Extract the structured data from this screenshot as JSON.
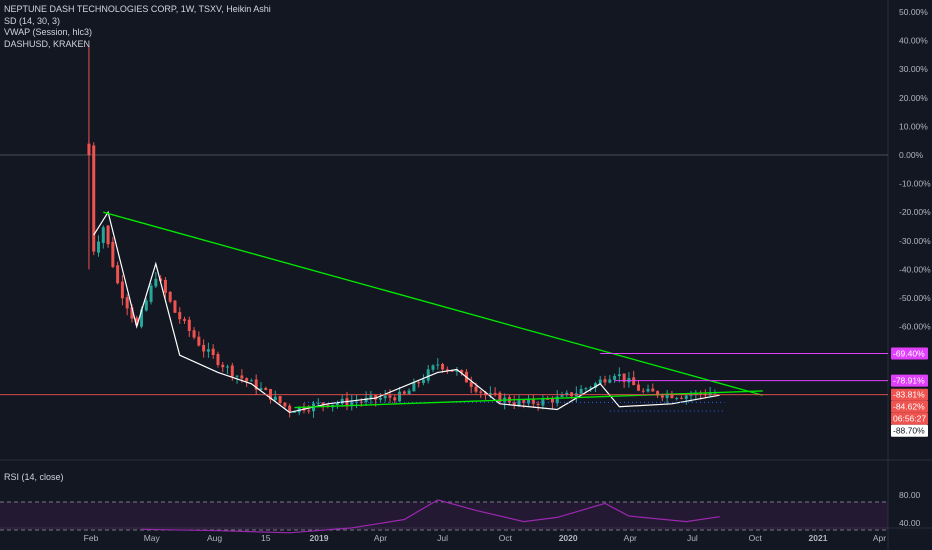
{
  "legend": {
    "title": "NEPTUNE DASH TECHNOLOGIES CORP, 1W, TSXV, Heikin Ashi",
    "sd": "SD (14, 30, 3)",
    "vwap": "VWAP (Session, hlc3)",
    "compare": "DASHUSD, KRAKEN"
  },
  "rsi_label": "RSI (14, close)",
  "colors": {
    "background": "#131722",
    "up": "#26a69a",
    "down": "#ef5350",
    "compare_line": "#ffffff",
    "trendline": "#00e600",
    "magenta": "#e040fb",
    "rsi": "#9c27b0",
    "price_line": "#ef5350"
  },
  "chart_data": [
    {
      "type": "candlestick",
      "title": "NEPTUNE DASH TECHNOLOGIES CORP, 1W, TSXV, Heikin Ashi",
      "y_unit": "percent",
      "ylim": [
        -91,
        53
      ],
      "y_ticks": [
        "50.00%",
        "40.00%",
        "30.00%",
        "20.00%",
        "10.00%",
        "0.00%",
        "-10.00%",
        "-20.00%",
        "-30.00%",
        "-40.00%",
        "-50.00%",
        "-60.00%"
      ],
      "x_ticks": [
        "Feb",
        "May",
        "Aug",
        "15",
        "2019",
        "Apr",
        "Jul",
        "Oct",
        "2020",
        "Apr",
        "Jul",
        "Oct",
        "2021",
        "Apr"
      ],
      "x_tick_dates": [
        "2018-02",
        "2018-05",
        "2018-08",
        "2018-10-15",
        "2019-01",
        "2019-04",
        "2019-07",
        "2019-10",
        "2020-01",
        "2020-04",
        "2020-07",
        "2020-10",
        "2021-01",
        "2021-04"
      ],
      "price_closes_approx": [
        {
          "date": "2018-01-29",
          "value": 0
        },
        {
          "date": "2018-02-05",
          "value": -33
        },
        {
          "date": "2018-02-19",
          "value": -25
        },
        {
          "date": "2018-03-12",
          "value": -45
        },
        {
          "date": "2018-04-09",
          "value": -60
        },
        {
          "date": "2018-05-07",
          "value": -42
        },
        {
          "date": "2018-06-04",
          "value": -55
        },
        {
          "date": "2018-07-16",
          "value": -68
        },
        {
          "date": "2018-08-27",
          "value": -76
        },
        {
          "date": "2018-10-08",
          "value": -82
        },
        {
          "date": "2018-11-19",
          "value": -89
        },
        {
          "date": "2019-01-07",
          "value": -87
        },
        {
          "date": "2019-03-04",
          "value": -86
        },
        {
          "date": "2019-05-06",
          "value": -84
        },
        {
          "date": "2019-06-24",
          "value": -73
        },
        {
          "date": "2019-07-22",
          "value": -76
        },
        {
          "date": "2019-09-02",
          "value": -84
        },
        {
          "date": "2019-10-28",
          "value": -87
        },
        {
          "date": "2019-12-23",
          "value": -85
        },
        {
          "date": "2020-02-10",
          "value": -80
        },
        {
          "date": "2020-03-09",
          "value": -76
        },
        {
          "date": "2020-04-20",
          "value": -83
        },
        {
          "date": "2020-06-15",
          "value": -84
        },
        {
          "date": "2020-08-03",
          "value": -83
        }
      ],
      "compare_series": {
        "name": "DASHUSD, KRAKEN",
        "values_approx": [
          {
            "date": "2018-02-05",
            "value": -28
          },
          {
            "date": "2018-02-26",
            "value": -20
          },
          {
            "date": "2018-04-09",
            "value": -60
          },
          {
            "date": "2018-05-07",
            "value": -38
          },
          {
            "date": "2018-06-11",
            "value": -70
          },
          {
            "date": "2018-08-06",
            "value": -76
          },
          {
            "date": "2018-09-24",
            "value": -80
          },
          {
            "date": "2018-11-19",
            "value": -90
          },
          {
            "date": "2019-01-14",
            "value": -87
          },
          {
            "date": "2019-03-25",
            "value": -85
          },
          {
            "date": "2019-06-24",
            "value": -76
          },
          {
            "date": "2019-07-22",
            "value": -75
          },
          {
            "date": "2019-09-23",
            "value": -87
          },
          {
            "date": "2019-12-16",
            "value": -89
          },
          {
            "date": "2020-02-17",
            "value": -80
          },
          {
            "date": "2020-03-16",
            "value": -88
          },
          {
            "date": "2020-06-01",
            "value": -87
          },
          {
            "date": "2020-08-10",
            "value": -84
          }
        ]
      },
      "trendlines": [
        {
          "from": {
            "date": "2018-02-19",
            "value": -20
          },
          "to": {
            "date": "2020-10-12",
            "value": -84
          }
        },
        {
          "from": {
            "date": "2018-11-26",
            "value": -88.3
          },
          "to": {
            "date": "2020-10-12",
            "value": -82.5
          }
        }
      ],
      "price_labels": [
        {
          "text": "-69.40%",
          "value": -69.4,
          "color": "#e040fb"
        },
        {
          "text": "-78.91%",
          "value": -78.91,
          "color": "#e040fb"
        },
        {
          "text": "-83.81%",
          "value": -83.81,
          "color": "#ef5350"
        },
        {
          "text": "-84.62%",
          "value": -84.62,
          "color": "#ef5350"
        },
        {
          "text": "06:56:27",
          "value": -87.0,
          "color": "#ef5350"
        },
        {
          "text": "-88.70%",
          "value": -88.7,
          "color": "#ffffff"
        }
      ]
    },
    {
      "type": "line",
      "title": "RSI (14, close)",
      "ylim": [
        25,
        90
      ],
      "y_ticks": [
        "80.00",
        "40.00"
      ],
      "bands": [
        70,
        30
      ],
      "values_approx": [
        {
          "date": "2018-04-16",
          "value": 31
        },
        {
          "date": "2018-08-06",
          "value": 29
        },
        {
          "date": "2018-11-19",
          "value": 26
        },
        {
          "date": "2019-02-18",
          "value": 33
        },
        {
          "date": "2019-05-06",
          "value": 45
        },
        {
          "date": "2019-06-24",
          "value": 73
        },
        {
          "date": "2019-08-19",
          "value": 58
        },
        {
          "date": "2019-10-28",
          "value": 42
        },
        {
          "date": "2019-12-16",
          "value": 48
        },
        {
          "date": "2020-02-24",
          "value": 68
        },
        {
          "date": "2020-03-30",
          "value": 50
        },
        {
          "date": "2020-06-22",
          "value": 42
        },
        {
          "date": "2020-08-10",
          "value": 49
        }
      ]
    }
  ]
}
